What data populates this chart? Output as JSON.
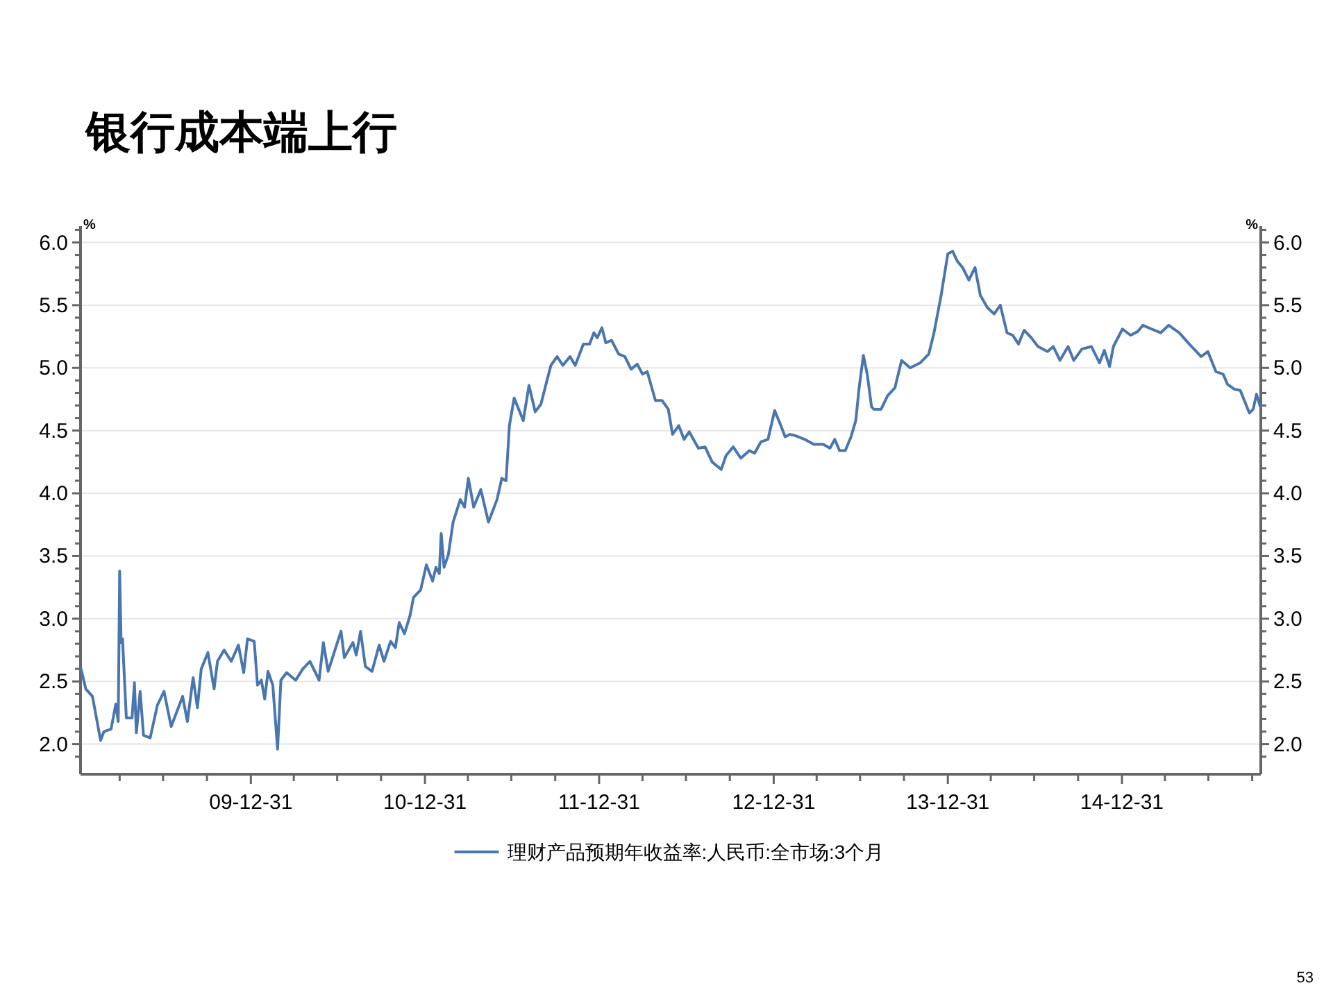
{
  "chart_data": {
    "type": "line",
    "title": "银行成本端上行",
    "ylabel": "%",
    "y2label": "%",
    "annotations": [
      "53"
    ],
    "xlim": [
      "2009-01-08",
      "2015-10-18"
    ],
    "ylim": [
      1.76,
      6.13
    ],
    "y2lim": [
      1.76,
      6.13
    ],
    "xticks": [
      {
        "value": "2009-03-31",
        "label": null
      },
      {
        "value": "2009-06-30",
        "label": null
      },
      {
        "value": "2009-09-30",
        "label": null
      },
      {
        "value": "2009-12-31",
        "label": "09-12-31"
      },
      {
        "value": "2010-03-31",
        "label": null
      },
      {
        "value": "2010-06-30",
        "label": null
      },
      {
        "value": "2010-09-30",
        "label": null
      },
      {
        "value": "2010-12-31",
        "label": "10-12-31"
      },
      {
        "value": "2011-03-31",
        "label": null
      },
      {
        "value": "2011-06-30",
        "label": null
      },
      {
        "value": "2011-09-30",
        "label": null
      },
      {
        "value": "2011-12-31",
        "label": "11-12-31"
      },
      {
        "value": "2012-03-31",
        "label": null
      },
      {
        "value": "2012-06-30",
        "label": null
      },
      {
        "value": "2012-09-30",
        "label": null
      },
      {
        "value": "2012-12-31",
        "label": "12-12-31"
      },
      {
        "value": "2013-03-31",
        "label": null
      },
      {
        "value": "2013-06-30",
        "label": null
      },
      {
        "value": "2013-09-30",
        "label": null
      },
      {
        "value": "2013-12-31",
        "label": "13-12-31"
      },
      {
        "value": "2014-03-31",
        "label": null
      },
      {
        "value": "2014-06-30",
        "label": null
      },
      {
        "value": "2014-09-30",
        "label": null
      },
      {
        "value": "2014-12-31",
        "label": "14-12-31"
      },
      {
        "value": "2015-03-31",
        "label": null
      },
      {
        "value": "2015-06-30",
        "label": null
      },
      {
        "value": "2015-09-30",
        "label": null
      }
    ],
    "yticks": [
      {
        "value": 1.9,
        "label": null
      },
      {
        "value": 2,
        "label": "2.0"
      },
      {
        "value": 2.1,
        "label": null
      },
      {
        "value": 2.2,
        "label": null
      },
      {
        "value": 2.3,
        "label": null
      },
      {
        "value": 2.4,
        "label": null
      },
      {
        "value": 2.5,
        "label": "2.5"
      },
      {
        "value": 2.6,
        "label": null
      },
      {
        "value": 2.7,
        "label": null
      },
      {
        "value": 2.8,
        "label": null
      },
      {
        "value": 2.9,
        "label": null
      },
      {
        "value": 3,
        "label": "3.0"
      },
      {
        "value": 3.1,
        "label": null
      },
      {
        "value": 3.2,
        "label": null
      },
      {
        "value": 3.3,
        "label": null
      },
      {
        "value": 3.4,
        "label": null
      },
      {
        "value": 3.5,
        "label": "3.5"
      },
      {
        "value": 3.6,
        "label": null
      },
      {
        "value": 3.7,
        "label": null
      },
      {
        "value": 3.8,
        "label": null
      },
      {
        "value": 3.9,
        "label": null
      },
      {
        "value": 4,
        "label": "4.0"
      },
      {
        "value": 4.1,
        "label": null
      },
      {
        "value": 4.2,
        "label": null
      },
      {
        "value": 4.3,
        "label": null
      },
      {
        "value": 4.4,
        "label": null
      },
      {
        "value": 4.5,
        "label": "4.5"
      },
      {
        "value": 4.6,
        "label": null
      },
      {
        "value": 4.7,
        "label": null
      },
      {
        "value": 4.8,
        "label": null
      },
      {
        "value": 4.9,
        "label": null
      },
      {
        "value": 5,
        "label": "5.0"
      },
      {
        "value": 5.1,
        "label": null
      },
      {
        "value": 5.2,
        "label": null
      },
      {
        "value": 5.3,
        "label": null
      },
      {
        "value": 5.4,
        "label": null
      },
      {
        "value": 5.5,
        "label": "5.5"
      },
      {
        "value": 5.6,
        "label": null
      },
      {
        "value": 5.7,
        "label": null
      },
      {
        "value": 5.8,
        "label": null
      },
      {
        "value": 5.9,
        "label": null
      },
      {
        "value": 6,
        "label": "6.0"
      },
      {
        "value": 6.1,
        "label": null
      }
    ],
    "y2ticks": [
      {
        "value": 1.9,
        "label": null
      },
      {
        "value": 2,
        "label": "2.0"
      },
      {
        "value": 2.1,
        "label": null
      },
      {
        "value": 2.2,
        "label": null
      },
      {
        "value": 2.3,
        "label": null
      },
      {
        "value": 2.4,
        "label": null
      },
      {
        "value": 2.5,
        "label": "2.5"
      },
      {
        "value": 2.6,
        "label": null
      },
      {
        "value": 2.7,
        "label": null
      },
      {
        "value": 2.8,
        "label": null
      },
      {
        "value": 2.9,
        "label": null
      },
      {
        "value": 3,
        "label": "3.0"
      },
      {
        "value": 3.1,
        "label": null
      },
      {
        "value": 3.2,
        "label": null
      },
      {
        "value": 3.3,
        "label": null
      },
      {
        "value": 3.4,
        "label": null
      },
      {
        "value": 3.5,
        "label": "3.5"
      },
      {
        "value": 3.6,
        "label": null
      },
      {
        "value": 3.7,
        "label": null
      },
      {
        "value": 3.8,
        "label": null
      },
      {
        "value": 3.9,
        "label": null
      },
      {
        "value": 4,
        "label": "4.0"
      },
      {
        "value": 4.1,
        "label": null
      },
      {
        "value": 4.2,
        "label": null
      },
      {
        "value": 4.3,
        "label": null
      },
      {
        "value": 4.4,
        "label": null
      },
      {
        "value": 4.5,
        "label": "4.5"
      },
      {
        "value": 4.6,
        "label": null
      },
      {
        "value": 4.7,
        "label": null
      },
      {
        "value": 4.8,
        "label": null
      },
      {
        "value": 4.9,
        "label": null
      },
      {
        "value": 5,
        "label": "5.0"
      },
      {
        "value": 5.1,
        "label": null
      },
      {
        "value": 5.2,
        "label": null
      },
      {
        "value": 5.3,
        "label": null
      },
      {
        "value": 5.4,
        "label": null
      },
      {
        "value": 5.5,
        "label": "5.5"
      },
      {
        "value": 5.6,
        "label": null
      },
      {
        "value": 5.7,
        "label": null
      },
      {
        "value": 5.8,
        "label": null
      },
      {
        "value": 5.9,
        "label": null
      },
      {
        "value": 6,
        "label": "6.0"
      },
      {
        "value": 6.1,
        "label": null
      }
    ],
    "grid": "y",
    "legend": "bottom",
    "marker": "none",
    "line_style": "solid",
    "series": [
      {
        "name": "理财产品预期年收益率:人民币:全市场:3个月",
        "color": "#4a76b0",
        "x": [
          "2009-01-09",
          "2009-01-19",
          "2009-02-02",
          "2009-02-19",
          "2009-02-26",
          "2009-03-13",
          "2009-03-23",
          "2009-03-28",
          "2009-03-31",
          "2009-04-03",
          "2009-04-06",
          "2009-04-14",
          "2009-04-26",
          "2009-05-01",
          "2009-05-05",
          "2009-05-13",
          "2009-05-20",
          "2009-06-03",
          "2009-06-18",
          "2009-07-02",
          "2009-07-17",
          "2009-08-10",
          "2009-08-20",
          "2009-09-01",
          "2009-09-10",
          "2009-09-18",
          "2009-10-02",
          "2009-10-15",
          "2009-10-22",
          "2009-11-05",
          "2009-11-20",
          "2009-12-05",
          "2009-12-16",
          "2009-12-24",
          "2010-01-07",
          "2010-01-14",
          "2010-01-22",
          "2010-01-29",
          "2010-02-05",
          "2010-02-15",
          "2010-02-25",
          "2010-03-04",
          "2010-03-16",
          "2010-04-04",
          "2010-04-19",
          "2010-05-04",
          "2010-05-23",
          "2010-06-01",
          "2010-06-11",
          "2010-07-08",
          "2010-07-15",
          "2010-08-02",
          "2010-08-09",
          "2010-08-18",
          "2010-08-28",
          "2010-09-11",
          "2010-09-26",
          "2010-10-06",
          "2010-10-20",
          "2010-10-30",
          "2010-11-07",
          "2010-11-18",
          "2010-11-30",
          "2010-12-07",
          "2010-12-22",
          "2011-01-03",
          "2011-01-16",
          "2011-01-23",
          "2011-01-30",
          "2011-02-03",
          "2011-02-09",
          "2011-02-18",
          "2011-02-28",
          "2011-03-15",
          "2011-03-24",
          "2011-04-01",
          "2011-04-12",
          "2011-04-27",
          "2011-05-13",
          "2011-05-31",
          "2011-06-10",
          "2011-06-19",
          "2011-06-26",
          "2011-07-06",
          "2011-07-25",
          "2011-08-06",
          "2011-08-19",
          "2011-08-31",
          "2011-09-12",
          "2011-09-21",
          "2011-10-04",
          "2011-10-16",
          "2011-10-31",
          "2011-11-11",
          "2011-11-28",
          "2011-12-11",
          "2011-12-20",
          "2011-12-27",
          "2012-01-06",
          "2012-01-14",
          "2012-01-26",
          "2012-02-10",
          "2012-02-23",
          "2012-03-07",
          "2012-03-20",
          "2012-03-31",
          "2012-04-10",
          "2012-04-27",
          "2012-05-11",
          "2012-05-24",
          "2012-06-02",
          "2012-06-15",
          "2012-06-26",
          "2012-07-07",
          "2012-07-26",
          "2012-08-09",
          "2012-08-24",
          "2012-09-12",
          "2012-09-22",
          "2012-10-07",
          "2012-10-23",
          "2012-11-10",
          "2012-11-21",
          "2012-12-04",
          "2012-12-19",
          "2013-01-02",
          "2013-01-15",
          "2013-01-24",
          "2013-02-03",
          "2013-02-14",
          "2013-03-06",
          "2013-03-25",
          "2013-04-14",
          "2013-04-28",
          "2013-05-08",
          "2013-05-18",
          "2013-05-30",
          "2013-06-11",
          "2013-06-21",
          "2013-06-28",
          "2013-07-07",
          "2013-07-15",
          "2013-07-24",
          "2013-07-29",
          "2013-08-13",
          "2013-08-27",
          "2013-09-11",
          "2013-09-25",
          "2013-10-13",
          "2013-11-03",
          "2013-11-21",
          "2013-12-02",
          "2013-12-17",
          "2013-12-31",
          "2014-01-10",
          "2014-01-20",
          "2014-01-31",
          "2014-02-13",
          "2014-02-26",
          "2014-03-09",
          "2014-03-24",
          "2014-04-07",
          "2014-04-20",
          "2014-05-04",
          "2014-05-16",
          "2014-05-28",
          "2014-06-09",
          "2014-06-24",
          "2014-07-08",
          "2014-07-28",
          "2014-08-09",
          "2014-08-23",
          "2014-09-09",
          "2014-09-21",
          "2014-10-08",
          "2014-10-28",
          "2014-11-14",
          "2014-11-24",
          "2014-12-05",
          "2014-12-13",
          "2015-01-01",
          "2015-01-18",
          "2015-02-02",
          "2015-02-13",
          "2015-03-03",
          "2015-03-22",
          "2015-04-08",
          "2015-04-30",
          "2015-05-21",
          "2015-06-15",
          "2015-06-29",
          "2015-07-16",
          "2015-07-31",
          "2015-08-09",
          "2015-08-24",
          "2015-09-05",
          "2015-09-24",
          "2015-10-02",
          "2015-10-09",
          "2015-10-17"
        ],
        "values": [
          2.6,
          2.44,
          2.38,
          2.03,
          2.1,
          2.12,
          2.32,
          2.18,
          3.38,
          2.81,
          2.84,
          2.21,
          2.21,
          2.49,
          2.09,
          2.42,
          2.07,
          2.05,
          2.31,
          2.42,
          2.14,
          2.38,
          2.18,
          2.53,
          2.29,
          2.6,
          2.73,
          2.44,
          2.66,
          2.75,
          2.66,
          2.79,
          2.57,
          2.84,
          2.82,
          2.47,
          2.51,
          2.36,
          2.58,
          2.47,
          1.96,
          2.51,
          2.57,
          2.51,
          2.6,
          2.66,
          2.51,
          2.81,
          2.58,
          2.9,
          2.69,
          2.81,
          2.71,
          2.9,
          2.62,
          2.58,
          2.79,
          2.66,
          2.82,
          2.77,
          2.97,
          2.88,
          3.03,
          3.17,
          3.23,
          3.43,
          3.3,
          3.41,
          3.36,
          3.68,
          3.41,
          3.51,
          3.77,
          3.95,
          3.89,
          4.12,
          3.89,
          4.03,
          3.77,
          3.95,
          4.12,
          4.1,
          4.54,
          4.76,
          4.58,
          4.86,
          4.65,
          4.71,
          4.89,
          5.02,
          5.09,
          5.02,
          5.09,
          5.02,
          5.19,
          5.19,
          5.28,
          5.24,
          5.32,
          5.2,
          5.22,
          5.11,
          5.09,
          4.99,
          5.03,
          4.95,
          4.97,
          4.74,
          4.74,
          4.67,
          4.47,
          4.54,
          4.43,
          4.49,
          4.36,
          4.37,
          4.25,
          4.19,
          4.3,
          4.37,
          4.28,
          4.34,
          4.32,
          4.41,
          4.43,
          4.66,
          4.54,
          4.45,
          4.47,
          4.46,
          4.43,
          4.39,
          4.39,
          4.36,
          4.43,
          4.34,
          4.34,
          4.45,
          4.58,
          4.84,
          5.1,
          4.95,
          4.69,
          4.67,
          4.67,
          4.78,
          4.84,
          5.06,
          5.0,
          5.04,
          5.11,
          5.28,
          5.58,
          5.91,
          5.93,
          5.85,
          5.8,
          5.7,
          5.8,
          5.58,
          5.48,
          5.43,
          5.5,
          5.28,
          5.26,
          5.19,
          5.3,
          5.24,
          5.17,
          5.13,
          5.17,
          5.06,
          5.17,
          5.06,
          5.15,
          5.17,
          5.04,
          5.14,
          5.01,
          5.17,
          5.31,
          5.26,
          5.29,
          5.34,
          5.31,
          5.28,
          5.34,
          5.28,
          5.19,
          5.09,
          5.13,
          4.97,
          4.95,
          4.87,
          4.83,
          4.82,
          4.64,
          4.67,
          4.79,
          4.69
        ]
      }
    ]
  }
}
